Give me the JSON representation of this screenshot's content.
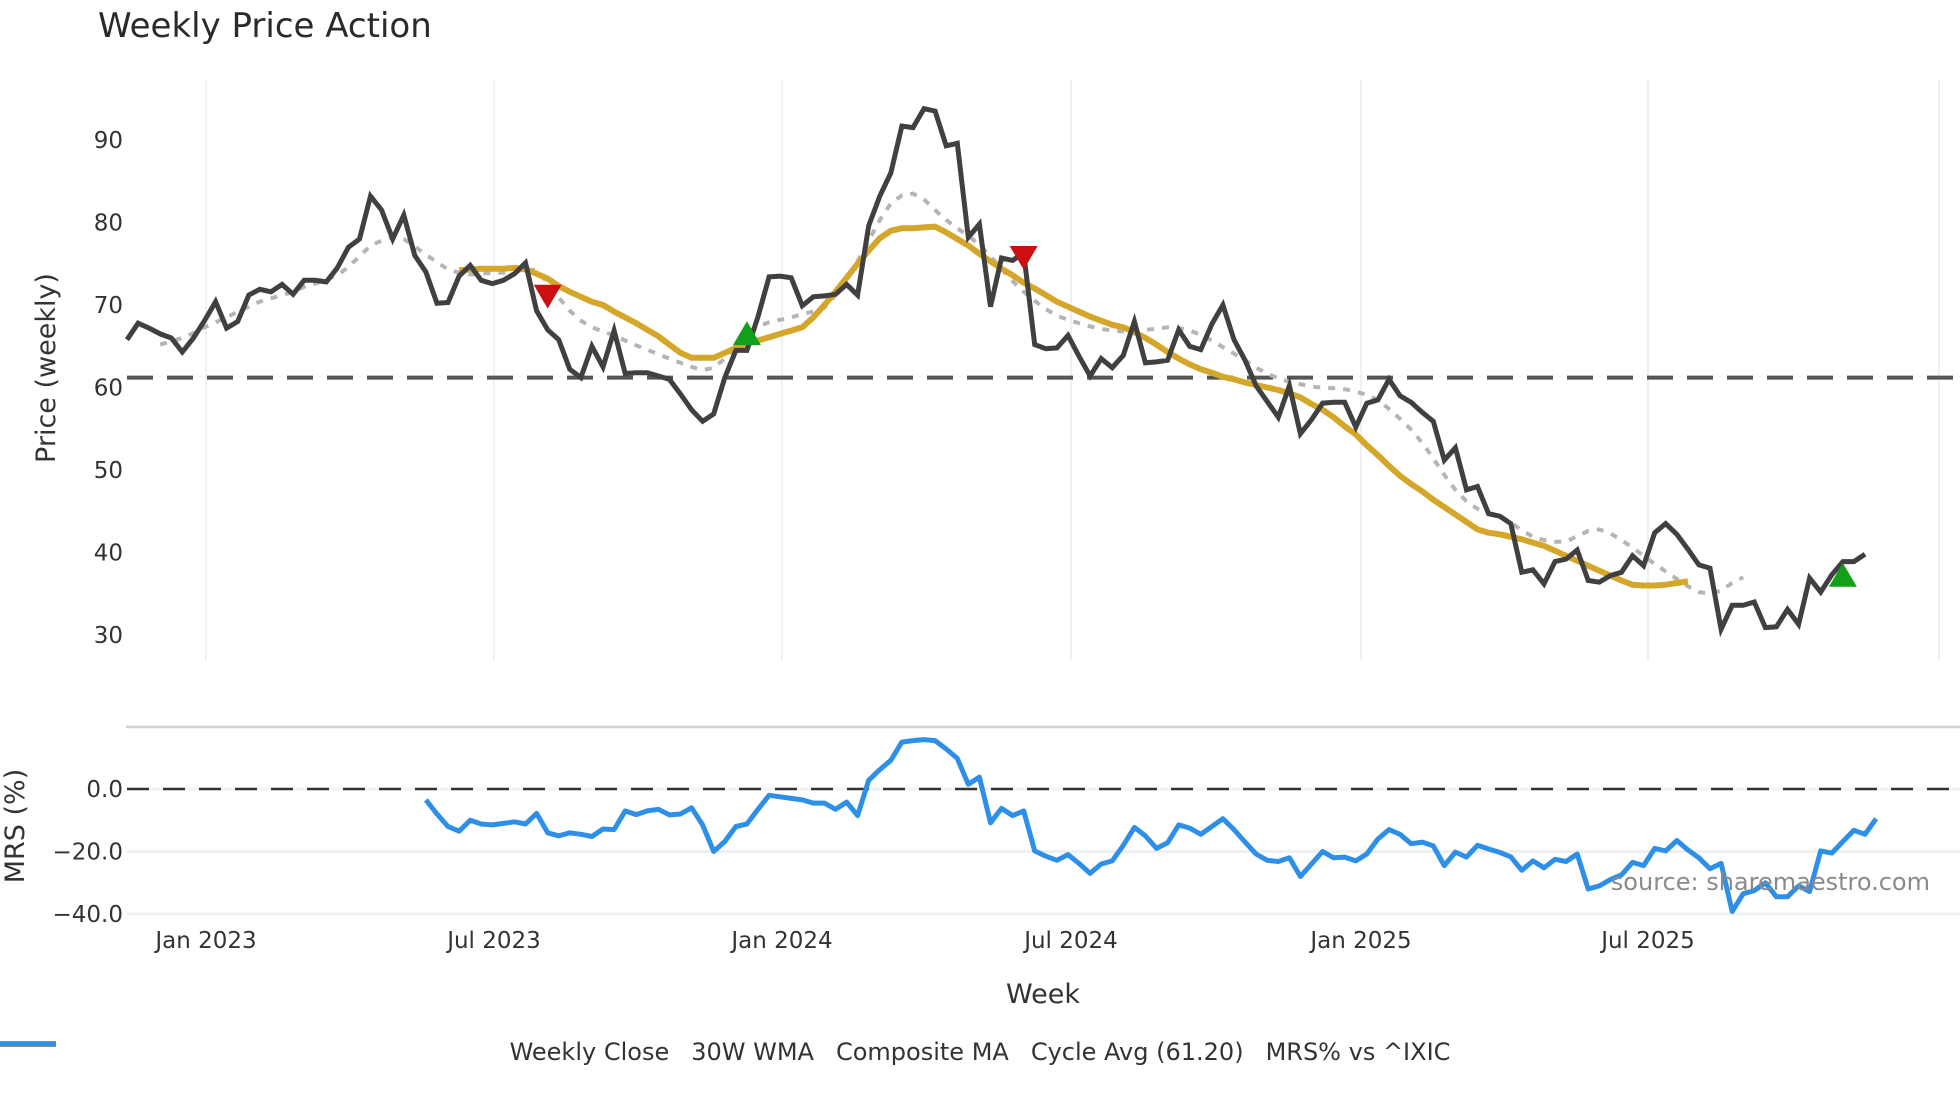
{
  "chart_title": "Weekly Price Action",
  "price_panel": {
    "ylabel": "Price (weekly)",
    "yticks": [
      "90",
      "80",
      "70",
      "60",
      "50",
      "40",
      "30"
    ],
    "ytick_values": [
      90,
      80,
      70,
      60,
      50,
      40,
      30
    ]
  },
  "mrs_panel": {
    "ylabel": "MRS (%)",
    "yticks": [
      "0.0",
      "−20.0",
      "−40.0"
    ],
    "ytick_values": [
      0,
      -20,
      -40
    ]
  },
  "x_axis": {
    "label": "Week",
    "ticks": [
      "Jan 2023",
      "Jul 2023",
      "Jan 2024",
      "Jul 2024",
      "Jan 2025",
      "Jul 2025"
    ]
  },
  "watermark": "source: sharemaestro.com",
  "legend": [
    {
      "label": "Weekly Close",
      "color": "#404040",
      "style": "solid"
    },
    {
      "label": "30W WMA",
      "color": "#d4a62a",
      "style": "solid"
    },
    {
      "label": "Composite MA",
      "color": "#b5b5b5",
      "style": "dotted"
    },
    {
      "label": "Cycle Avg (61.20)",
      "color": "#555555",
      "style": "dashed"
    },
    {
      "label": "MRS% vs ^IXIC",
      "color": "#2e8fe8",
      "style": "solid"
    }
  ],
  "colors": {
    "close": "#404040",
    "wma": "#d4a62a",
    "composite": "#b5b5b5",
    "cycle": "#555555",
    "mrs": "#2e8fe8",
    "buy_marker": "#12a01a",
    "sell_marker": "#cc1010",
    "grid": "#eef0f4"
  },
  "chart_data": [
    {
      "type": "line",
      "title": "Weekly Price Action",
      "xlabel": "Week",
      "ylabel": "Price (weekly)",
      "ylim": [
        26,
        97
      ],
      "x_start": "2022-11-14",
      "x_freq": "weekly",
      "x_tick_labels": [
        "Jan 2023",
        "Jul 2023",
        "Jan 2024",
        "Jul 2024",
        "Jan 2025",
        "Jul 2025"
      ],
      "grid": true,
      "legend_position": "bottom",
      "series": [
        {
          "name": "Weekly Close",
          "start_index": 0,
          "values": [
            65.8,
            67.8,
            67.2,
            66.5,
            66,
            64.3,
            66,
            68.1,
            70.4,
            67.2,
            68,
            71.2,
            71.9,
            71.6,
            72.5,
            71.3,
            73,
            73,
            72.8,
            74.5,
            77,
            78,
            83.2,
            81.5,
            78,
            80.9,
            76,
            74,
            70.2,
            70.3,
            73.5,
            74.8,
            73,
            72.6,
            73,
            73.8,
            75.1,
            69.3,
            67,
            65.8,
            62.2,
            61.2,
            65,
            62.5,
            66.9,
            61.7,
            61.8,
            61.8,
            61.4,
            61,
            59.2,
            57.3,
            55.9,
            56.8,
            61.2,
            64.5,
            64.5,
            68.6,
            73.4,
            73.5,
            73.3,
            69.9,
            71,
            71.1,
            71.3,
            72.5,
            71.2,
            79.6,
            83.2,
            86,
            91.7,
            91.5,
            93.8,
            93.5,
            89.3,
            89.6,
            78.2,
            79.8,
            69.8,
            75.7,
            75.4,
            76.3,
            65.2,
            64.7,
            64.8,
            66.3,
            63.8,
            61.4,
            63.5,
            62.4,
            63.9,
            68,
            63,
            63.1,
            63.3,
            67,
            65,
            64.6,
            67.7,
            70,
            65.8,
            63.3,
            60.2,
            58.3,
            56.4,
            60.2,
            54.4,
            56.1,
            58.1,
            58.2,
            58.2,
            55.2,
            58.1,
            58.5,
            61,
            59,
            58.2,
            57,
            55.9,
            51.2,
            52.7,
            47.6,
            48,
            44.7,
            44.4,
            43.5,
            37.6,
            37.9,
            36.2,
            38.9,
            39.2,
            40.3,
            36.6,
            36.4,
            37.2,
            37.6,
            39.6,
            38.4,
            42.4,
            43.5,
            42.2,
            40.4,
            38.5,
            38.1,
            30.7,
            33.6,
            33.6,
            34,
            30.9,
            31,
            33.1,
            31.3,
            36.9,
            35.2,
            37.3,
            38.9,
            38.9,
            39.8
          ]
        },
        {
          "name": "30W WMA",
          "start_index": 30,
          "values": [
            74.2,
            74.3,
            74.4,
            74.4,
            74.4,
            74.5,
            74.3,
            73.8,
            73.2,
            72.3,
            71.6,
            71,
            70.4,
            70,
            69.2,
            68.5,
            67.8,
            67,
            66.2,
            65.2,
            64.2,
            63.6,
            63.6,
            63.6,
            64.2,
            64.8,
            65.3,
            65.7,
            66.1,
            66.5,
            66.9,
            67.3,
            68.5,
            70,
            71.6,
            73.3,
            75,
            76.6,
            78.1,
            79,
            79.3,
            79.3,
            79.4,
            79.5,
            78.8,
            78,
            77.2,
            76.2,
            75.3,
            74.4,
            73.6,
            72.7,
            72,
            71.2,
            70.4,
            69.8,
            69.2,
            68.6,
            68.1,
            67.6,
            67.3,
            66.7,
            66,
            65.2,
            64.3,
            63.5,
            62.8,
            62.2,
            61.8,
            61.3,
            61,
            60.6,
            60.3,
            60,
            59.7,
            59.3,
            58.8,
            58,
            57.3,
            56.4,
            55.3,
            54.3,
            53,
            51.8,
            50.5,
            49.3,
            48.3,
            47.4,
            46.4,
            45.5,
            44.6,
            43.7,
            42.8,
            42.4,
            42.2,
            41.9,
            41.6,
            41.2,
            40.8,
            40.2,
            39.6,
            39,
            38.4,
            37.8,
            37.2,
            36.6,
            36.1,
            36,
            36,
            36.1,
            36.3,
            36.5
          ]
        },
        {
          "name": "Composite MA",
          "start_index": 3,
          "values": [
            65.2,
            65.6,
            66,
            66.6,
            67.3,
            67.9,
            68.5,
            69.2,
            69.8,
            70.4,
            70.8,
            71.2,
            71.6,
            72.2,
            72.6,
            73.1,
            73.6,
            74.6,
            75.9,
            77.2,
            77.8,
            78.2,
            78,
            77.1,
            76.1,
            75.2,
            74.3,
            73.9,
            73.7,
            73.8,
            73.9,
            73.9,
            73.9,
            74.3,
            74.2,
            72.7,
            70.9,
            69.3,
            68.1,
            67.3,
            66.8,
            66.3,
            65.7,
            65.1,
            64.6,
            64,
            63.5,
            63,
            62.5,
            62.1,
            62.4,
            63.5,
            65,
            66.3,
            67.4,
            67.9,
            68.2,
            68.5,
            68.9,
            69.2,
            69.7,
            71.2,
            73,
            75.3,
            77.8,
            80.3,
            82.3,
            83.3,
            83.5,
            82.8,
            81.5,
            80.3,
            79.3,
            78.4,
            77.3,
            75.9,
            74.4,
            72.9,
            71.6,
            70.5,
            69.5,
            68.7,
            68.2,
            67.8,
            67.4,
            67.1,
            66.9,
            66.8,
            66.8,
            67,
            67.1,
            67.3,
            67.2,
            66.9,
            66.4,
            65.7,
            64.9,
            64.1,
            63.3,
            62.4,
            61.7,
            61.1,
            60.7,
            60.4,
            60.1,
            60,
            59.9,
            59.8,
            59.5,
            59.1,
            58.5,
            57.4,
            56.2,
            54.9,
            53.3,
            51.4,
            49.4,
            47.6,
            46.2,
            45.3,
            44.8,
            44.5,
            43.6,
            42.7,
            41.9,
            41.5,
            41.3,
            41.3,
            42,
            42.6,
            42.8,
            42.3,
            41.5,
            40.6,
            39.6,
            38.6,
            37.7,
            36.8,
            35.9,
            35.2,
            35,
            35.4,
            36.3,
            37
          ]
        },
        {
          "name": "Cycle Avg (61.20)",
          "constant": 61.2
        }
      ],
      "markers": [
        {
          "type": "sell",
          "shape": "triangle-down",
          "index": 38,
          "value": 71.1
        },
        {
          "type": "buy",
          "shape": "triangle-up",
          "index": 56,
          "value": 66.5
        },
        {
          "type": "sell",
          "shape": "triangle-down",
          "index": 81,
          "value": 75.8
        },
        {
          "type": "buy",
          "shape": "triangle-up",
          "index": 155,
          "value": 37.2
        }
      ]
    },
    {
      "type": "line",
      "title": "",
      "xlabel": "Week",
      "ylabel": "MRS (%)",
      "ylim": [
        -42,
        18
      ],
      "grid": true,
      "series": [
        {
          "name": "MRS% vs ^IXIC",
          "start_index": 27,
          "values": [
            -3.5,
            -8,
            -12,
            -13.5,
            -10,
            -11.2,
            -11.5,
            -11,
            -10.5,
            -11.2,
            -7.8,
            -14,
            -15,
            -14,
            -14.5,
            -15.2,
            -12.8,
            -13,
            -7,
            -8.2,
            -7,
            -6.5,
            -8.3,
            -8,
            -6,
            -11.5,
            -20,
            -16.8,
            -12,
            -11.2,
            -6.5,
            -2,
            -2.5,
            -3,
            -3.5,
            -4.5,
            -4.5,
            -6.5,
            -4.2,
            -8.5,
            2.8,
            6.2,
            9.2,
            15,
            15.5,
            15.8,
            15.5,
            12.8,
            9.8,
            1.5,
            3.8,
            -10.8,
            -6.2,
            -8.5,
            -7,
            -19.8,
            -21.5,
            -22.8,
            -21,
            -23.8,
            -27,
            -24,
            -23,
            -18,
            -12.3,
            -15,
            -19,
            -17.2,
            -11.5,
            -12.5,
            -14.5,
            -12,
            -9.5,
            -13,
            -17,
            -20.8,
            -22.8,
            -23.2,
            -22,
            -28,
            -24,
            -20,
            -22,
            -21.8,
            -23,
            -20.8,
            -16,
            -13,
            -14.5,
            -17.5,
            -17,
            -18.2,
            -24.5,
            -20.2,
            -21.8,
            -18,
            -19.2,
            -20.3,
            -21.7,
            -26,
            -23,
            -25.2,
            -22.5,
            -23.2,
            -20.8,
            -32,
            -31,
            -29,
            -27.5,
            -23.5,
            -24.5,
            -19,
            -19.8,
            -16.5,
            -19.5,
            -22,
            -25.5,
            -23.8,
            -39.2,
            -33.5,
            -32.5,
            -30,
            -34.5,
            -34.5,
            -31,
            -32.8,
            -19.8,
            -20.5,
            -16.8,
            -13.2,
            -14.5,
            -9.5
          ]
        },
        {
          "name": "zero line",
          "constant": 0.0
        }
      ]
    }
  ]
}
